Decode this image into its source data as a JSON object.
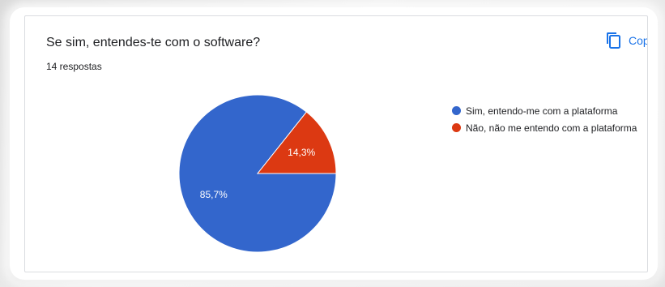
{
  "question": {
    "title": "Se sim, entendes-te com o software?",
    "responses": "14 respostas",
    "copy_label": "Cop"
  },
  "icons": {
    "copy": "copy-icon"
  },
  "chart_data": {
    "type": "pie",
    "categories": [
      "Sim, entendo-me com a plataforma",
      "Não, não me entendo com a plataforma"
    ],
    "values": [
      85.7,
      14.3
    ],
    "data_labels": [
      "85,7%",
      "14,3%"
    ],
    "colors": [
      "#3366cc",
      "#dc3912"
    ],
    "legend_position": "right"
  }
}
